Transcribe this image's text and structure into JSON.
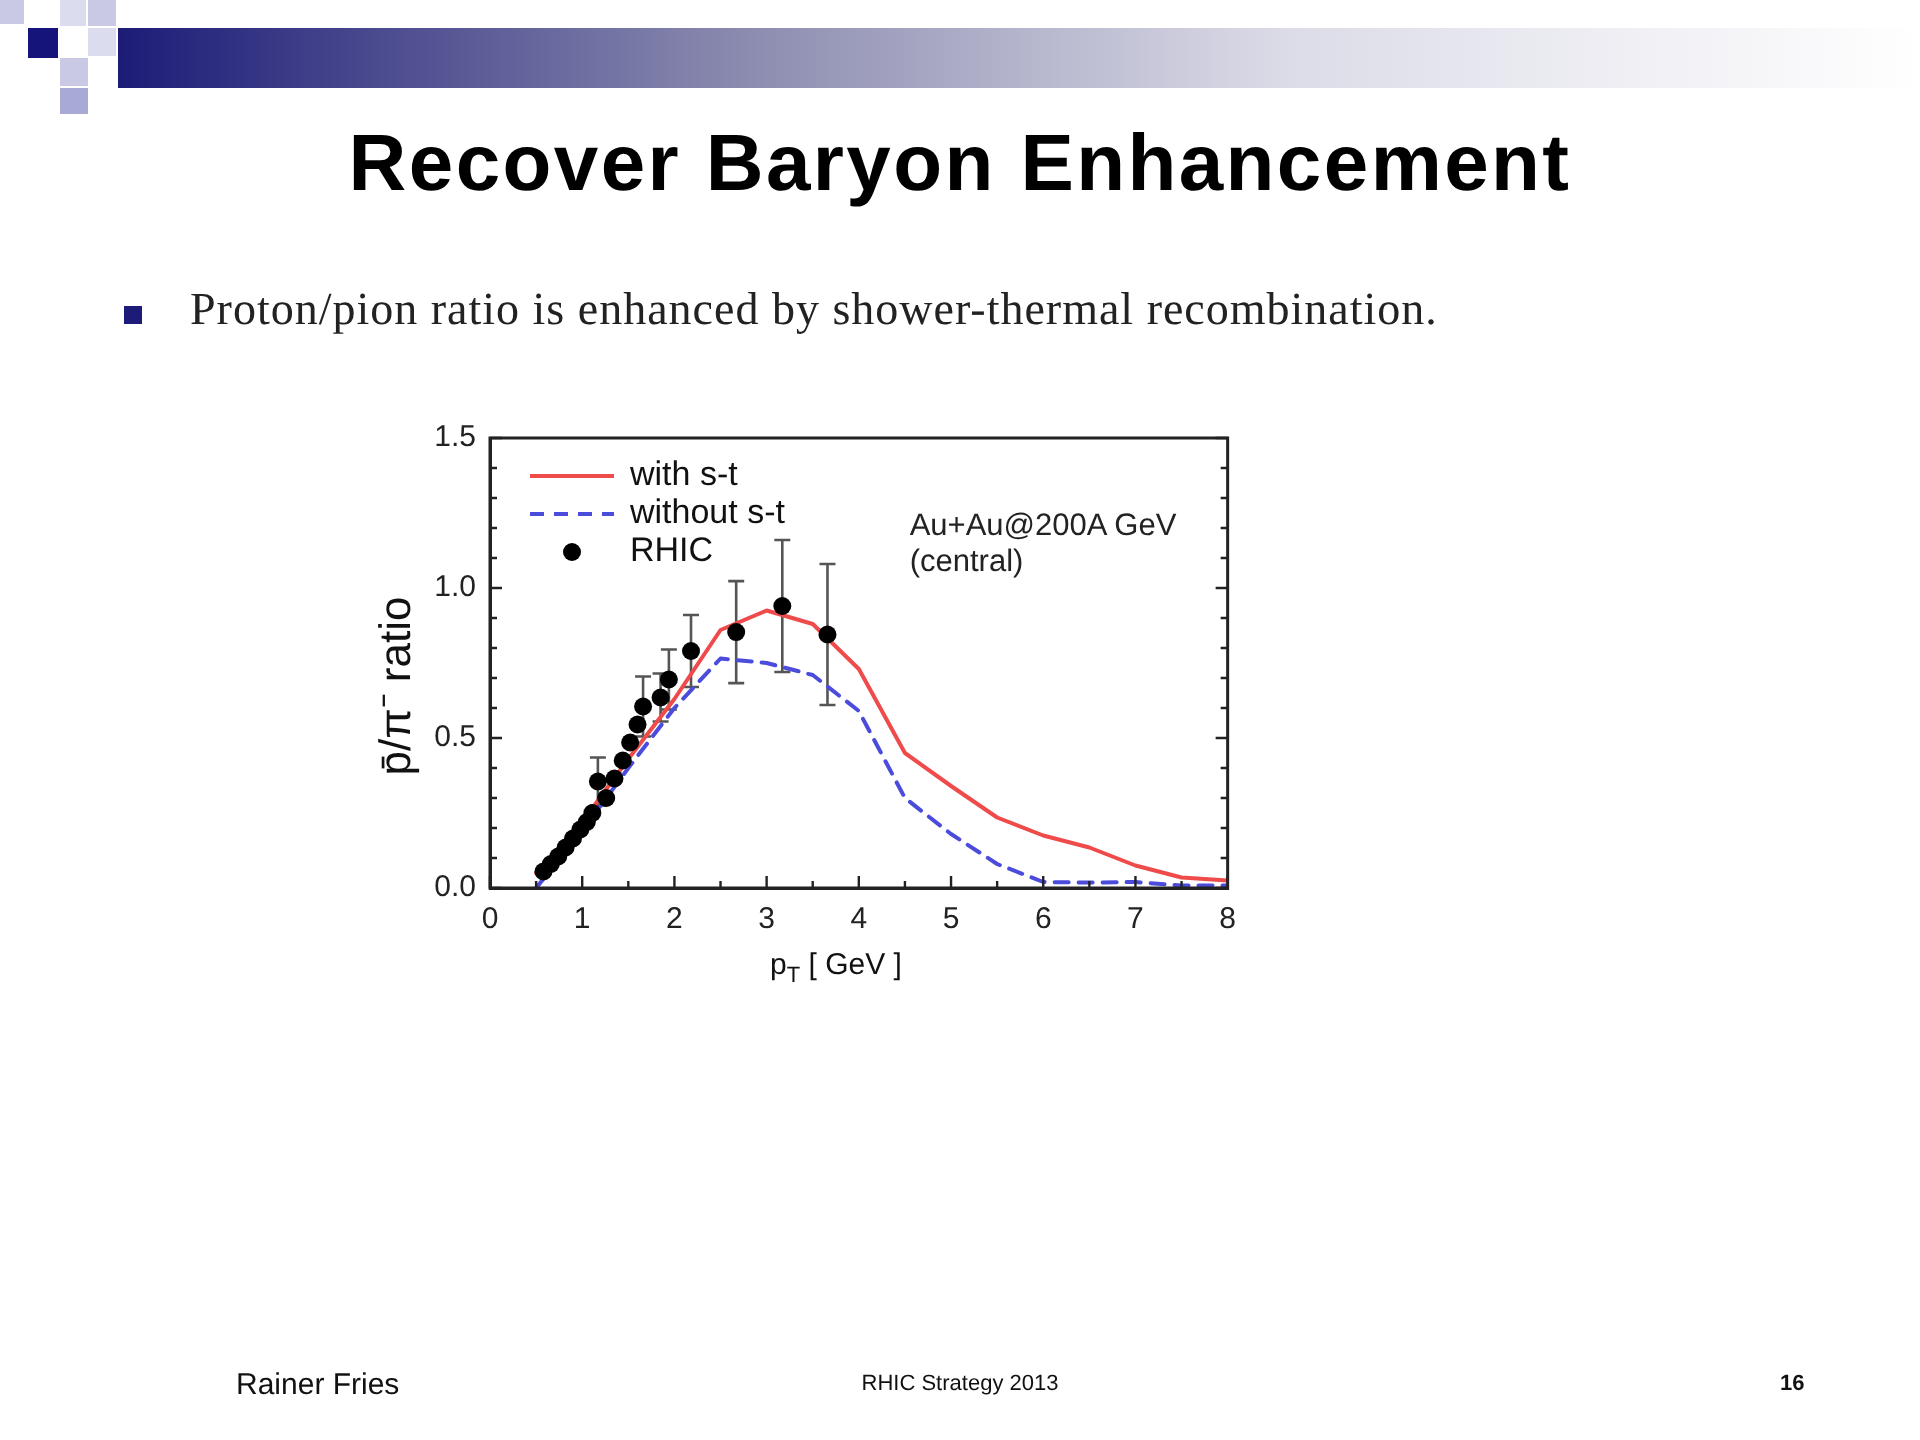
{
  "chart_data": {
    "type": "line",
    "title": "Recover Baryon Enhancement",
    "subtitle": "Proton/pion ratio is enhanced by shower-thermal recombination.",
    "xlabel": "p$_{T}$ [ GeV ]",
    "ylabel": "p̄/π⁻ ratio",
    "xlim": [
      0,
      8
    ],
    "ylim": [
      0,
      1.5
    ],
    "xticks": [
      0,
      {
        "value": 0.5,
        "label": null
      },
      1,
      {
        "value": 1.5,
        "label": null
      },
      2,
      {
        "value": 2.5,
        "label": null
      },
      3,
      {
        "value": 3.5,
        "label": null
      },
      4,
      {
        "value": 4.5,
        "label": null
      },
      5,
      {
        "value": 5.5,
        "label": null
      },
      6,
      {
        "value": 6.5,
        "label": null
      },
      7,
      {
        "value": 7.5,
        "label": null
      },
      8
    ],
    "yticks": [
      {
        "value": 0,
        "label": "0.0"
      },
      {
        "value": 0.1,
        "label": null
      },
      {
        "value": 0.2,
        "label": null
      },
      {
        "value": 0.3,
        "label": null
      },
      {
        "value": 0.4,
        "label": null
      },
      {
        "value": 0.5,
        "label": "0.5"
      },
      {
        "value": 0.6,
        "label": null
      },
      {
        "value": 0.7,
        "label": null
      },
      {
        "value": 0.8,
        "label": null
      },
      {
        "value": 0.9,
        "label": null
      },
      {
        "value": 1.0,
        "label": "1.0"
      },
      {
        "value": 1.1,
        "label": null
      },
      {
        "value": 1.2,
        "label": null
      },
      {
        "value": 1.3,
        "label": null
      },
      {
        "value": 1.4,
        "label": null
      },
      {
        "value": 1.5,
        "label": "1.5"
      }
    ],
    "legend": "top left",
    "series": [
      {
        "name": "with s-t",
        "type": "line",
        "color": "#ef4b4b",
        "line_style": "solid",
        "x": [
          0.5,
          1.0,
          1.5,
          2.0,
          2.5,
          3.0,
          3.5,
          4.0,
          4.5,
          5.0,
          5.5,
          6.0,
          6.5,
          7.0,
          7.5,
          8.0
        ],
        "values": [
          0.05,
          0.22,
          0.43,
          0.63,
          0.86,
          0.925,
          0.88,
          0.73,
          0.45,
          0.34,
          0.235,
          0.175,
          0.135,
          0.075,
          0.035,
          0.025
        ]
      },
      {
        "name": "without s-t",
        "type": "line",
        "color": "#4b4bdc",
        "line_style": "dashed",
        "x": [
          0.5,
          1.0,
          1.5,
          2.0,
          2.5,
          3.0,
          3.5,
          4.0,
          4.5,
          5.0,
          5.5,
          6.0,
          6.5,
          7.0,
          7.5,
          8.0
        ],
        "values": [
          0.0,
          0.19,
          0.4,
          0.6,
          0.765,
          0.75,
          0.71,
          0.59,
          0.3,
          0.18,
          0.08,
          0.02,
          0.018,
          0.02,
          0.008,
          0.008
        ]
      },
      {
        "name": "RHIC",
        "type": "scatter",
        "color": "#000000",
        "marker": "circle",
        "x": [
          0.58,
          0.66,
          0.74,
          0.82,
          0.9,
          0.98,
          1.05,
          1.11,
          1.17,
          1.26,
          1.35,
          1.44,
          1.52,
          1.6,
          1.66,
          1.85,
          1.94,
          2.18,
          2.67,
          3.17,
          3.66
        ],
        "values": [
          0.055,
          0.08,
          0.105,
          0.135,
          0.165,
          0.195,
          0.22,
          0.25,
          0.355,
          0.3,
          0.365,
          0.425,
          0.485,
          0.545,
          0.605,
          0.635,
          0.695,
          0.79,
          0.853,
          0.94,
          0.845
        ],
        "errors": [
          null,
          null,
          null,
          null,
          null,
          null,
          null,
          null,
          0.08,
          null,
          null,
          null,
          null,
          null,
          0.1,
          0.08,
          0.1,
          0.12,
          0.17,
          0.22,
          0.235
        ]
      }
    ],
    "annotations": [
      "Au+Au@200A GeV",
      "(central)",
      "Rainer Fries",
      "RHIC Strategy 2013",
      "16"
    ]
  }
}
